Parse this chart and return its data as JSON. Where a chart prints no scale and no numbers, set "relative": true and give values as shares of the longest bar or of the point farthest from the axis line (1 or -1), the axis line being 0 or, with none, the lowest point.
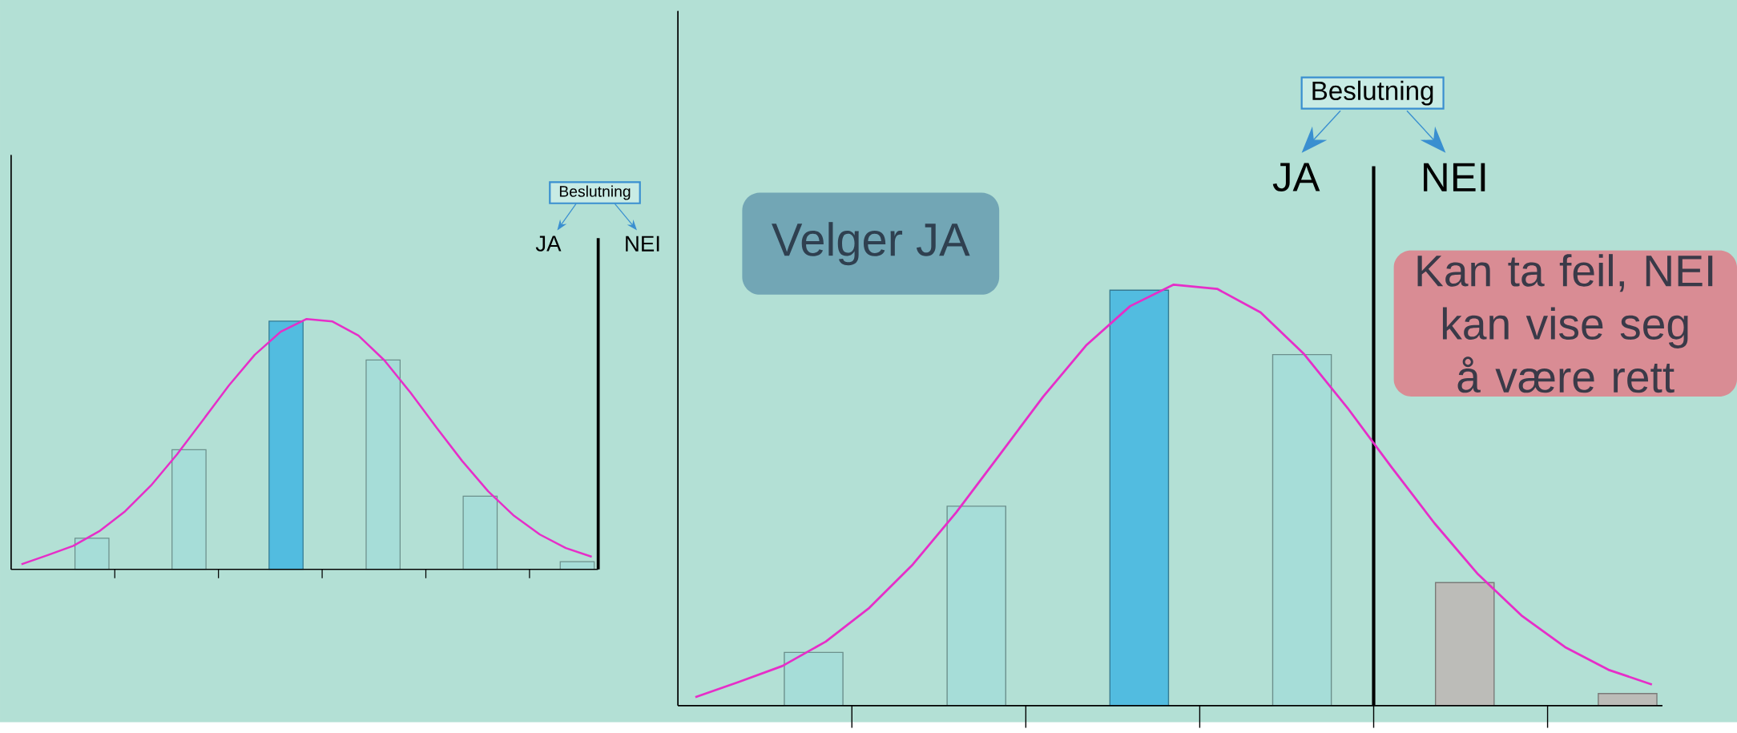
{
  "chart_data": [
    {
      "type": "bar",
      "relative": true,
      "categories": [
        null,
        null,
        null,
        null,
        null,
        null
      ],
      "series": [
        {
          "values": [
            0.125,
            0.482,
            1,
            0.844,
            0.295,
            0.031
          ],
          "colors": [
            "#a6ddd8",
            "#a6ddd8",
            "#52bce0",
            "#a6ddd8",
            "#a6ddd8",
            "#a6ddd8"
          ]
        }
      ],
      "annotations": [
        "Beslutning",
        "JA",
        "NEI"
      ]
    },
    {
      "type": "line",
      "relative": true,
      "categories": [
        null,
        null,
        null,
        null,
        null,
        null,
        null,
        null,
        null,
        null,
        null,
        null,
        null,
        null,
        null,
        null,
        null,
        null,
        null,
        null,
        null,
        null,
        null
      ],
      "series": [
        {
          "color": "#e62ec8",
          "values": [
            0.02,
            0.056,
            0.094,
            0.152,
            0.232,
            0.335,
            0.459,
            0.596,
            0.734,
            0.857,
            0.949,
            1,
            0.99,
            0.934,
            0.835,
            0.707,
            0.568,
            0.433,
            0.312,
            0.214,
            0.139,
            0.085,
            0.05
          ]
        }
      ]
    },
    {
      "type": "bar",
      "relative": true,
      "categories": [
        null,
        null,
        null,
        null,
        null,
        null
      ],
      "series": [
        {
          "values": [
            0.128,
            0.48,
            1,
            0.845,
            0.296,
            0.029
          ],
          "colors": [
            "#a6ddd8",
            "#a6ddd8",
            "#52bce0",
            "#a6ddd8",
            "#bcbcb8",
            "#bcbcb8"
          ]
        }
      ],
      "annotations": [
        "Beslutning",
        "JA",
        "NEI",
        "Velger JA",
        "Kan ta feil, NEI kan vise seg å være rett"
      ]
    },
    {
      "type": "line",
      "relative": true,
      "categories": [
        null,
        null,
        null,
        null,
        null,
        null,
        null,
        null,
        null,
        null,
        null,
        null,
        null,
        null,
        null,
        null,
        null,
        null,
        null,
        null,
        null,
        null,
        null
      ],
      "series": [
        {
          "color": "#e62ec8",
          "values": [
            0.02,
            0.056,
            0.094,
            0.152,
            0.232,
            0.335,
            0.459,
            0.596,
            0.734,
            0.857,
            0.949,
            1,
            0.99,
            0.934,
            0.835,
            0.707,
            0.568,
            0.433,
            0.312,
            0.214,
            0.139,
            0.085,
            0.05
          ]
        }
      ]
    }
  ]
}
